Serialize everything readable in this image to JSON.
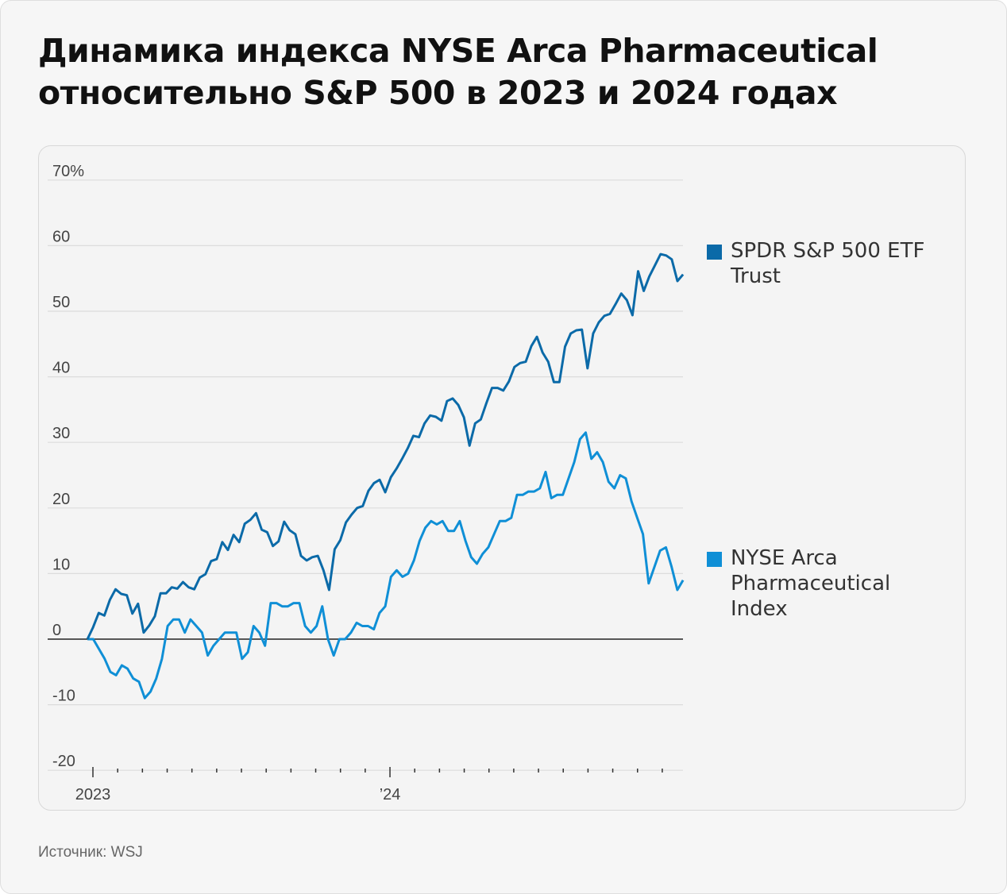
{
  "title": "Динамика индекса NYSE Arca Pharmaceutical относительно S&P 500 в 2023 и 2024 годах",
  "source": "Источник: WSJ",
  "chart_data": {
    "type": "line",
    "title": "Динамика индекса NYSE Arca Pharmaceutical относительно S&P 500 в 2023 и 2024 годах",
    "xlabel": "",
    "ylabel": "",
    "ylim": [
      -20,
      70
    ],
    "yticks": [
      70,
      60,
      50,
      40,
      30,
      20,
      10,
      0,
      -10,
      -20
    ],
    "ytick_labels": [
      "70%",
      "60",
      "50",
      "40",
      "30",
      "20",
      "10",
      "0",
      "-10",
      "-20"
    ],
    "x_unit": "months since Jan 2023",
    "x_range": [
      -0.22,
      23.84
    ],
    "xticks_months": [
      0,
      1,
      2,
      3,
      4,
      5,
      6,
      7,
      8,
      9,
      10,
      11,
      12,
      13,
      14,
      15,
      16,
      17,
      18,
      19,
      20,
      21,
      22,
      23
    ],
    "xtick_labels": [
      {
        "month": 0,
        "label": "2023"
      },
      {
        "month": 12,
        "label": "’24"
      }
    ],
    "grid": true,
    "legend_placement": "right",
    "series": [
      {
        "name": "SPDR S&P 500 ETF Trust",
        "color": "#0b6aa8",
        "values": [
          0,
          1.8,
          4,
          3.6,
          6,
          7.6,
          6.9,
          6.7,
          3.9,
          5.4,
          1,
          2.1,
          3.5,
          7,
          7,
          7.9,
          7.7,
          8.7,
          7.9,
          7.6,
          9.4,
          9.9,
          11.9,
          12.2,
          14.8,
          13.6,
          15.9,
          14.8,
          17.6,
          18.2,
          19.2,
          16.7,
          16.3,
          14.2,
          14.9,
          17.9,
          16.6,
          16,
          12.7,
          12,
          12.5,
          12.7,
          10.5,
          7.5,
          13.7,
          15.1,
          17.8,
          19,
          20,
          20.3,
          22.6,
          23.8,
          24.3,
          22.4,
          24.7,
          26,
          27.5,
          29.1,
          31,
          30.8,
          32.9,
          34.1,
          33.9,
          33.3,
          36.3,
          36.7,
          35.7,
          33.8,
          29.5,
          32.9,
          33.5,
          36,
          38.3,
          38.3,
          37.9,
          39.3,
          41.5,
          42.1,
          42.3,
          44.7,
          46.1,
          43.7,
          42.3,
          39.2,
          39.2,
          44.6,
          46.6,
          47.1,
          47.2,
          41.3,
          46.6,
          48.3,
          49.3,
          49.6,
          51.1,
          52.7,
          51.7,
          49.4,
          56.1,
          53.1,
          55.3,
          57,
          58.7,
          58.5,
          57.9,
          54.6,
          55.6
        ]
      },
      {
        "name": "NYSE Arca Pharmaceutical Index",
        "color": "#0f8fd6",
        "values": [
          0,
          0,
          -1.5,
          -3,
          -5,
          -5.5,
          -4,
          -4.5,
          -6,
          -6.5,
          -9,
          -8,
          -6,
          -3,
          2,
          3,
          3,
          1,
          3,
          2,
          1,
          -2.5,
          -1,
          0,
          1,
          1,
          1,
          -3,
          -2,
          2,
          1,
          -1,
          5.5,
          5.5,
          5,
          5,
          5.5,
          5.5,
          2,
          1,
          2,
          5,
          0,
          -2.5,
          0,
          0,
          1,
          2.5,
          2,
          2,
          1.5,
          4,
          5,
          9.5,
          10.5,
          9.5,
          10,
          12,
          15,
          17,
          18,
          17.5,
          18,
          16.5,
          16.5,
          18,
          15,
          12.5,
          11.5,
          13,
          14,
          16,
          18,
          18,
          18.5,
          22,
          22,
          22.5,
          22.5,
          23,
          25.5,
          21.5,
          22,
          22,
          24.5,
          27,
          30.5,
          31.5,
          27.5,
          28.5,
          27,
          24,
          23,
          25,
          24.5,
          21,
          18.5,
          16,
          8.5,
          11,
          13.5,
          14,
          11,
          7.5,
          9
        ]
      }
    ]
  }
}
